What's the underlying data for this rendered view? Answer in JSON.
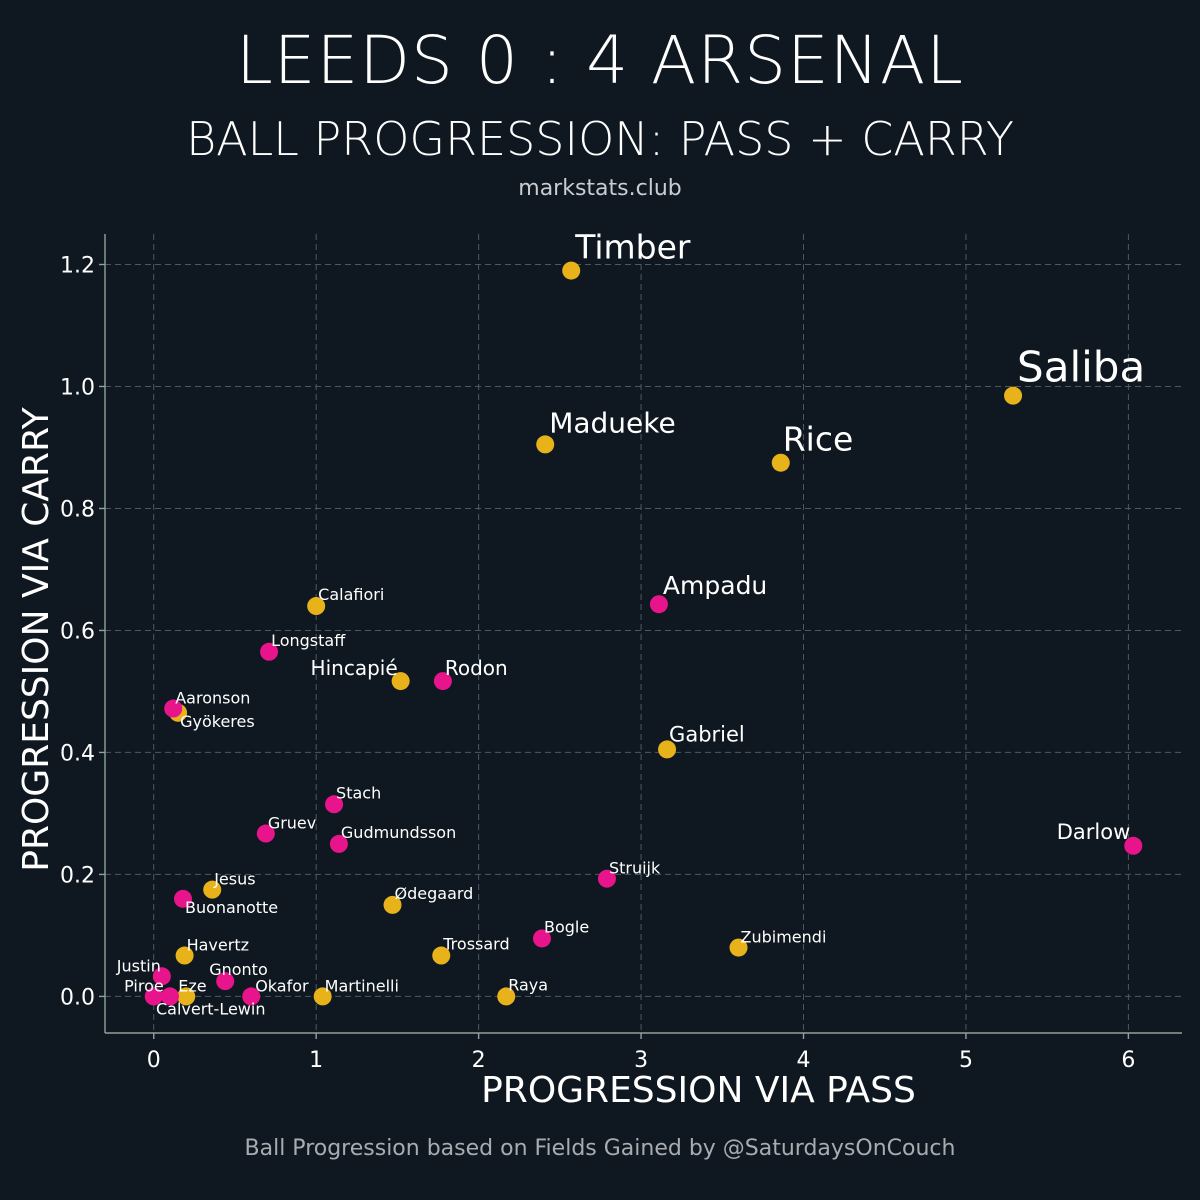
{
  "header": {
    "title": "LEEDS 0 : 4 ARSENAL",
    "subtitle": "BALL PROGRESSION: PASS + CARRY",
    "site": "markstats.club"
  },
  "footer": {
    "credit": "Ball Progression based on Fields Gained by @SaturdaysOnCouch"
  },
  "colors": {
    "background": "#0f1820",
    "arsenal": "#e8b21a",
    "leeds": "#e8148c",
    "grid": "#4c5962",
    "axis": "#8fa39a"
  },
  "chart_data": {
    "type": "scatter",
    "xlabel": "PROGRESSION VIA PASS",
    "ylabel": "PROGRESSION VIA CARRY",
    "xlim": [
      -0.3,
      6.33
    ],
    "ylim": [
      -0.06,
      1.25
    ],
    "xticks": [
      0,
      1,
      2,
      3,
      4,
      5,
      6
    ],
    "yticks": [
      0.0,
      0.2,
      0.4,
      0.6,
      0.8,
      1.0,
      1.2
    ],
    "ytick_labels": [
      "0.0",
      "0.2",
      "0.4",
      "0.6",
      "0.8",
      "1.0",
      "1.2"
    ],
    "grid": true,
    "series": [
      {
        "name": "Arsenal",
        "color": "#e8b21a",
        "points": [
          {
            "name": "Timber",
            "x": 2.57,
            "y": 1.19
          },
          {
            "name": "Saliba",
            "x": 5.29,
            "y": 0.985
          },
          {
            "name": "Madueke",
            "x": 2.41,
            "y": 0.905
          },
          {
            "name": "Rice",
            "x": 3.86,
            "y": 0.875
          },
          {
            "name": "Calafiori",
            "x": 1.0,
            "y": 0.64
          },
          {
            "name": "Hincapié",
            "x": 1.52,
            "y": 0.517
          },
          {
            "name": "Gabriel",
            "x": 3.16,
            "y": 0.405
          },
          {
            "name": "Gyökeres",
            "x": 0.15,
            "y": 0.465
          },
          {
            "name": "Jesus",
            "x": 0.36,
            "y": 0.175
          },
          {
            "name": "Ødegaard",
            "x": 1.47,
            "y": 0.15
          },
          {
            "name": "Zubimendi",
            "x": 3.6,
            "y": 0.08
          },
          {
            "name": "Havertz",
            "x": 0.19,
            "y": 0.067
          },
          {
            "name": "Trossard",
            "x": 1.77,
            "y": 0.067
          },
          {
            "name": "Eze",
            "x": 0.2,
            "y": 0.0
          },
          {
            "name": "Martinelli",
            "x": 1.04,
            "y": 0.0
          },
          {
            "name": "Raya",
            "x": 2.17,
            "y": 0.0
          }
        ]
      },
      {
        "name": "Leeds",
        "color": "#e8148c",
        "points": [
          {
            "name": "Ampadu",
            "x": 3.11,
            "y": 0.643
          },
          {
            "name": "Longstaff",
            "x": 0.71,
            "y": 0.565
          },
          {
            "name": "Rodon",
            "x": 1.78,
            "y": 0.517
          },
          {
            "name": "Aaronson",
            "x": 0.12,
            "y": 0.472
          },
          {
            "name": "Stach",
            "x": 1.11,
            "y": 0.315
          },
          {
            "name": "Gruev",
            "x": 0.69,
            "y": 0.267
          },
          {
            "name": "Gudmundsson",
            "x": 1.14,
            "y": 0.25
          },
          {
            "name": "Darlow",
            "x": 6.03,
            "y": 0.247
          },
          {
            "name": "Struijk",
            "x": 2.79,
            "y": 0.193
          },
          {
            "name": "Buonanotte",
            "x": 0.18,
            "y": 0.16
          },
          {
            "name": "Bogle",
            "x": 2.39,
            "y": 0.095
          },
          {
            "name": "Justin",
            "x": 0.05,
            "y": 0.033
          },
          {
            "name": "Gnonto",
            "x": 0.44,
            "y": 0.025
          },
          {
            "name": "Piroe",
            "x": 0.0,
            "y": 0.0
          },
          {
            "name": "Calvert-Lewin",
            "x": 0.1,
            "y": 0.0
          },
          {
            "name": "Okafor",
            "x": 0.6,
            "y": 0.0
          }
        ]
      }
    ]
  }
}
